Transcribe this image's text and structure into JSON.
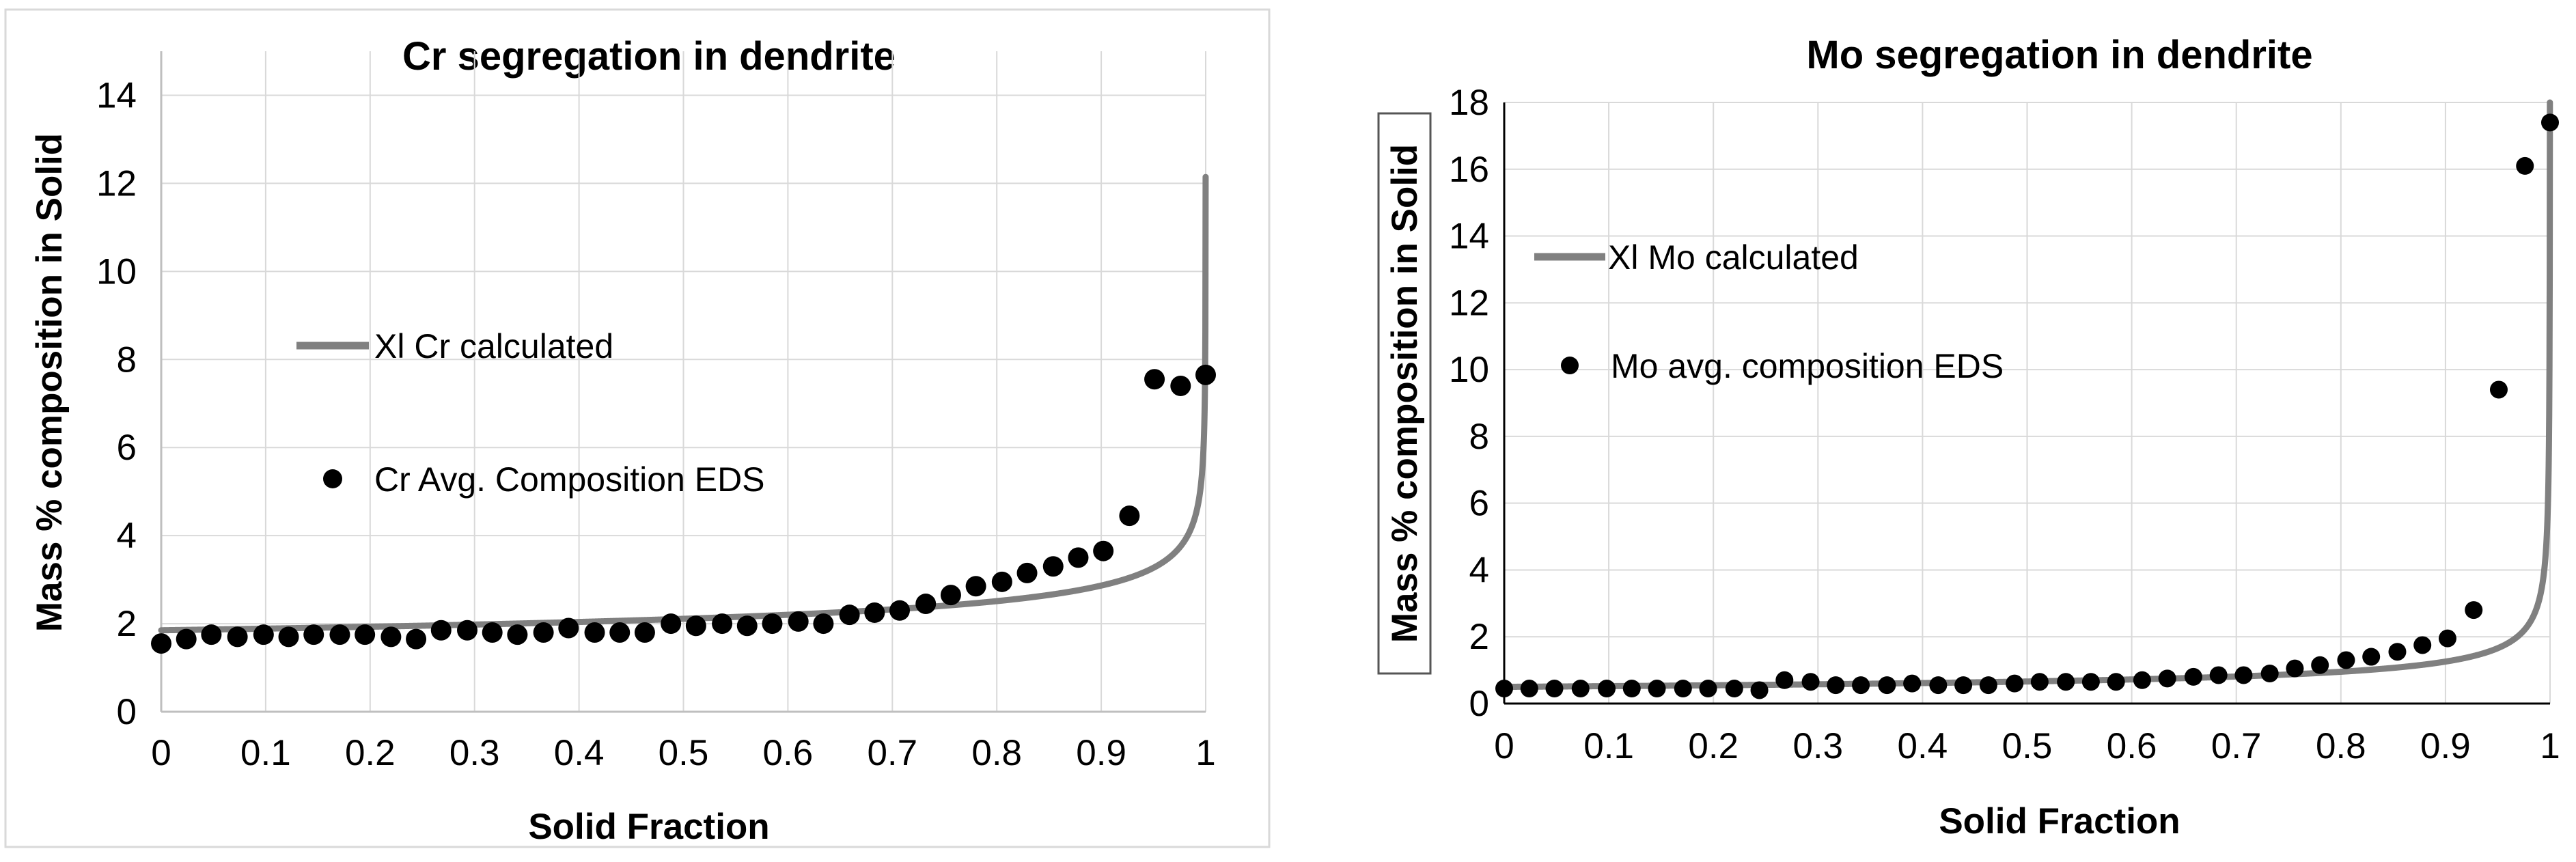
{
  "chart_data": [
    {
      "type": "line+scatter",
      "title": "Cr segregation in dendrite",
      "xlabel": "Solid Fraction",
      "ylabel": "Mass % composition in Solid",
      "xlim": [
        0,
        1
      ],
      "ylim": [
        0,
        15
      ],
      "xticks": [
        "0",
        "0.1",
        "0.2",
        "0.3",
        "0.4",
        "0.5",
        "0.6",
        "0.7",
        "0.8",
        "0.9",
        "1"
      ],
      "xtick_values": [
        0,
        0.1,
        0.2,
        0.3,
        0.4,
        0.5,
        0.6,
        0.7,
        0.8,
        0.9,
        1
      ],
      "yticks": [
        "0",
        "2",
        "4",
        "6",
        "8",
        "10",
        "12",
        "14"
      ],
      "ytick_values": [
        0,
        2,
        4,
        6,
        8,
        10,
        12,
        14
      ],
      "grid": true,
      "legend_placement": "center-left",
      "series": [
        {
          "name": "Xl Cr calculated",
          "kind": "line",
          "color": "#808080",
          "model": {
            "c0": 1.85,
            "k": 0.81
          }
        },
        {
          "name": "Cr Avg. Composition EDS",
          "kind": "scatter",
          "color": "#000000",
          "x": [
            0.0,
            0.024,
            0.048,
            0.073,
            0.098,
            0.122,
            0.146,
            0.171,
            0.195,
            0.22,
            0.244,
            0.268,
            0.293,
            0.317,
            0.341,
            0.366,
            0.39,
            0.415,
            0.439,
            0.463,
            0.488,
            0.512,
            0.537,
            0.561,
            0.585,
            0.61,
            0.634,
            0.659,
            0.683,
            0.707,
            0.732,
            0.756,
            0.78,
            0.805,
            0.829,
            0.854,
            0.878,
            0.902,
            0.927,
            0.951,
            0.976,
            1.0
          ],
          "y": [
            1.55,
            1.65,
            1.75,
            1.7,
            1.75,
            1.7,
            1.75,
            1.75,
            1.75,
            1.7,
            1.65,
            1.85,
            1.85,
            1.8,
            1.75,
            1.8,
            1.9,
            1.8,
            1.8,
            1.8,
            2.0,
            1.95,
            2.0,
            1.95,
            2.0,
            2.05,
            2.0,
            2.2,
            2.25,
            2.3,
            2.45,
            2.65,
            2.85,
            2.95,
            3.15,
            3.3,
            3.5,
            3.65,
            4.45,
            7.55,
            7.4,
            7.65
          ]
        }
      ]
    },
    {
      "type": "line+scatter",
      "title": "Mo segregation in dendrite",
      "xlabel": "Solid Fraction",
      "ylabel": "Mass % composition in Solid",
      "xlim": [
        0,
        1
      ],
      "ylim": [
        0,
        18
      ],
      "xticks": [
        "0",
        "0.1",
        "0.2",
        "0.3",
        "0.4",
        "0.5",
        "0.6",
        "0.7",
        "0.8",
        "0.9",
        "1"
      ],
      "xtick_values": [
        0,
        0.1,
        0.2,
        0.3,
        0.4,
        0.5,
        0.6,
        0.7,
        0.8,
        0.9,
        1
      ],
      "yticks": [
        "0",
        "2",
        "4",
        "6",
        "8",
        "10",
        "12",
        "14",
        "16",
        "18"
      ],
      "ytick_values": [
        0,
        2,
        4,
        6,
        8,
        10,
        12,
        14,
        16,
        18
      ],
      "grid": true,
      "legend_placement": "center-left",
      "series": [
        {
          "name": "Xl Mo calculated",
          "kind": "line",
          "color": "#808080",
          "model": {
            "c0": 0.5,
            "k": 0.6
          }
        },
        {
          "name": "Mo avg. composition EDS",
          "kind": "scatter",
          "color": "#000000",
          "x": [
            0.0,
            0.024,
            0.048,
            0.073,
            0.098,
            0.122,
            0.146,
            0.171,
            0.195,
            0.22,
            0.244,
            0.268,
            0.293,
            0.317,
            0.341,
            0.366,
            0.39,
            0.415,
            0.439,
            0.463,
            0.488,
            0.512,
            0.537,
            0.561,
            0.585,
            0.61,
            0.634,
            0.659,
            0.683,
            0.707,
            0.732,
            0.756,
            0.78,
            0.805,
            0.829,
            0.854,
            0.878,
            0.902,
            0.927,
            0.951,
            0.976,
            1.0
          ],
          "y": [
            0.45,
            0.45,
            0.45,
            0.45,
            0.45,
            0.45,
            0.45,
            0.45,
            0.45,
            0.45,
            0.4,
            0.7,
            0.65,
            0.55,
            0.55,
            0.55,
            0.6,
            0.55,
            0.55,
            0.55,
            0.6,
            0.65,
            0.65,
            0.65,
            0.65,
            0.7,
            0.75,
            0.8,
            0.85,
            0.85,
            0.9,
            1.05,
            1.15,
            1.3,
            1.4,
            1.55,
            1.75,
            1.95,
            2.8,
            9.4,
            16.1,
            17.4
          ]
        }
      ]
    }
  ]
}
